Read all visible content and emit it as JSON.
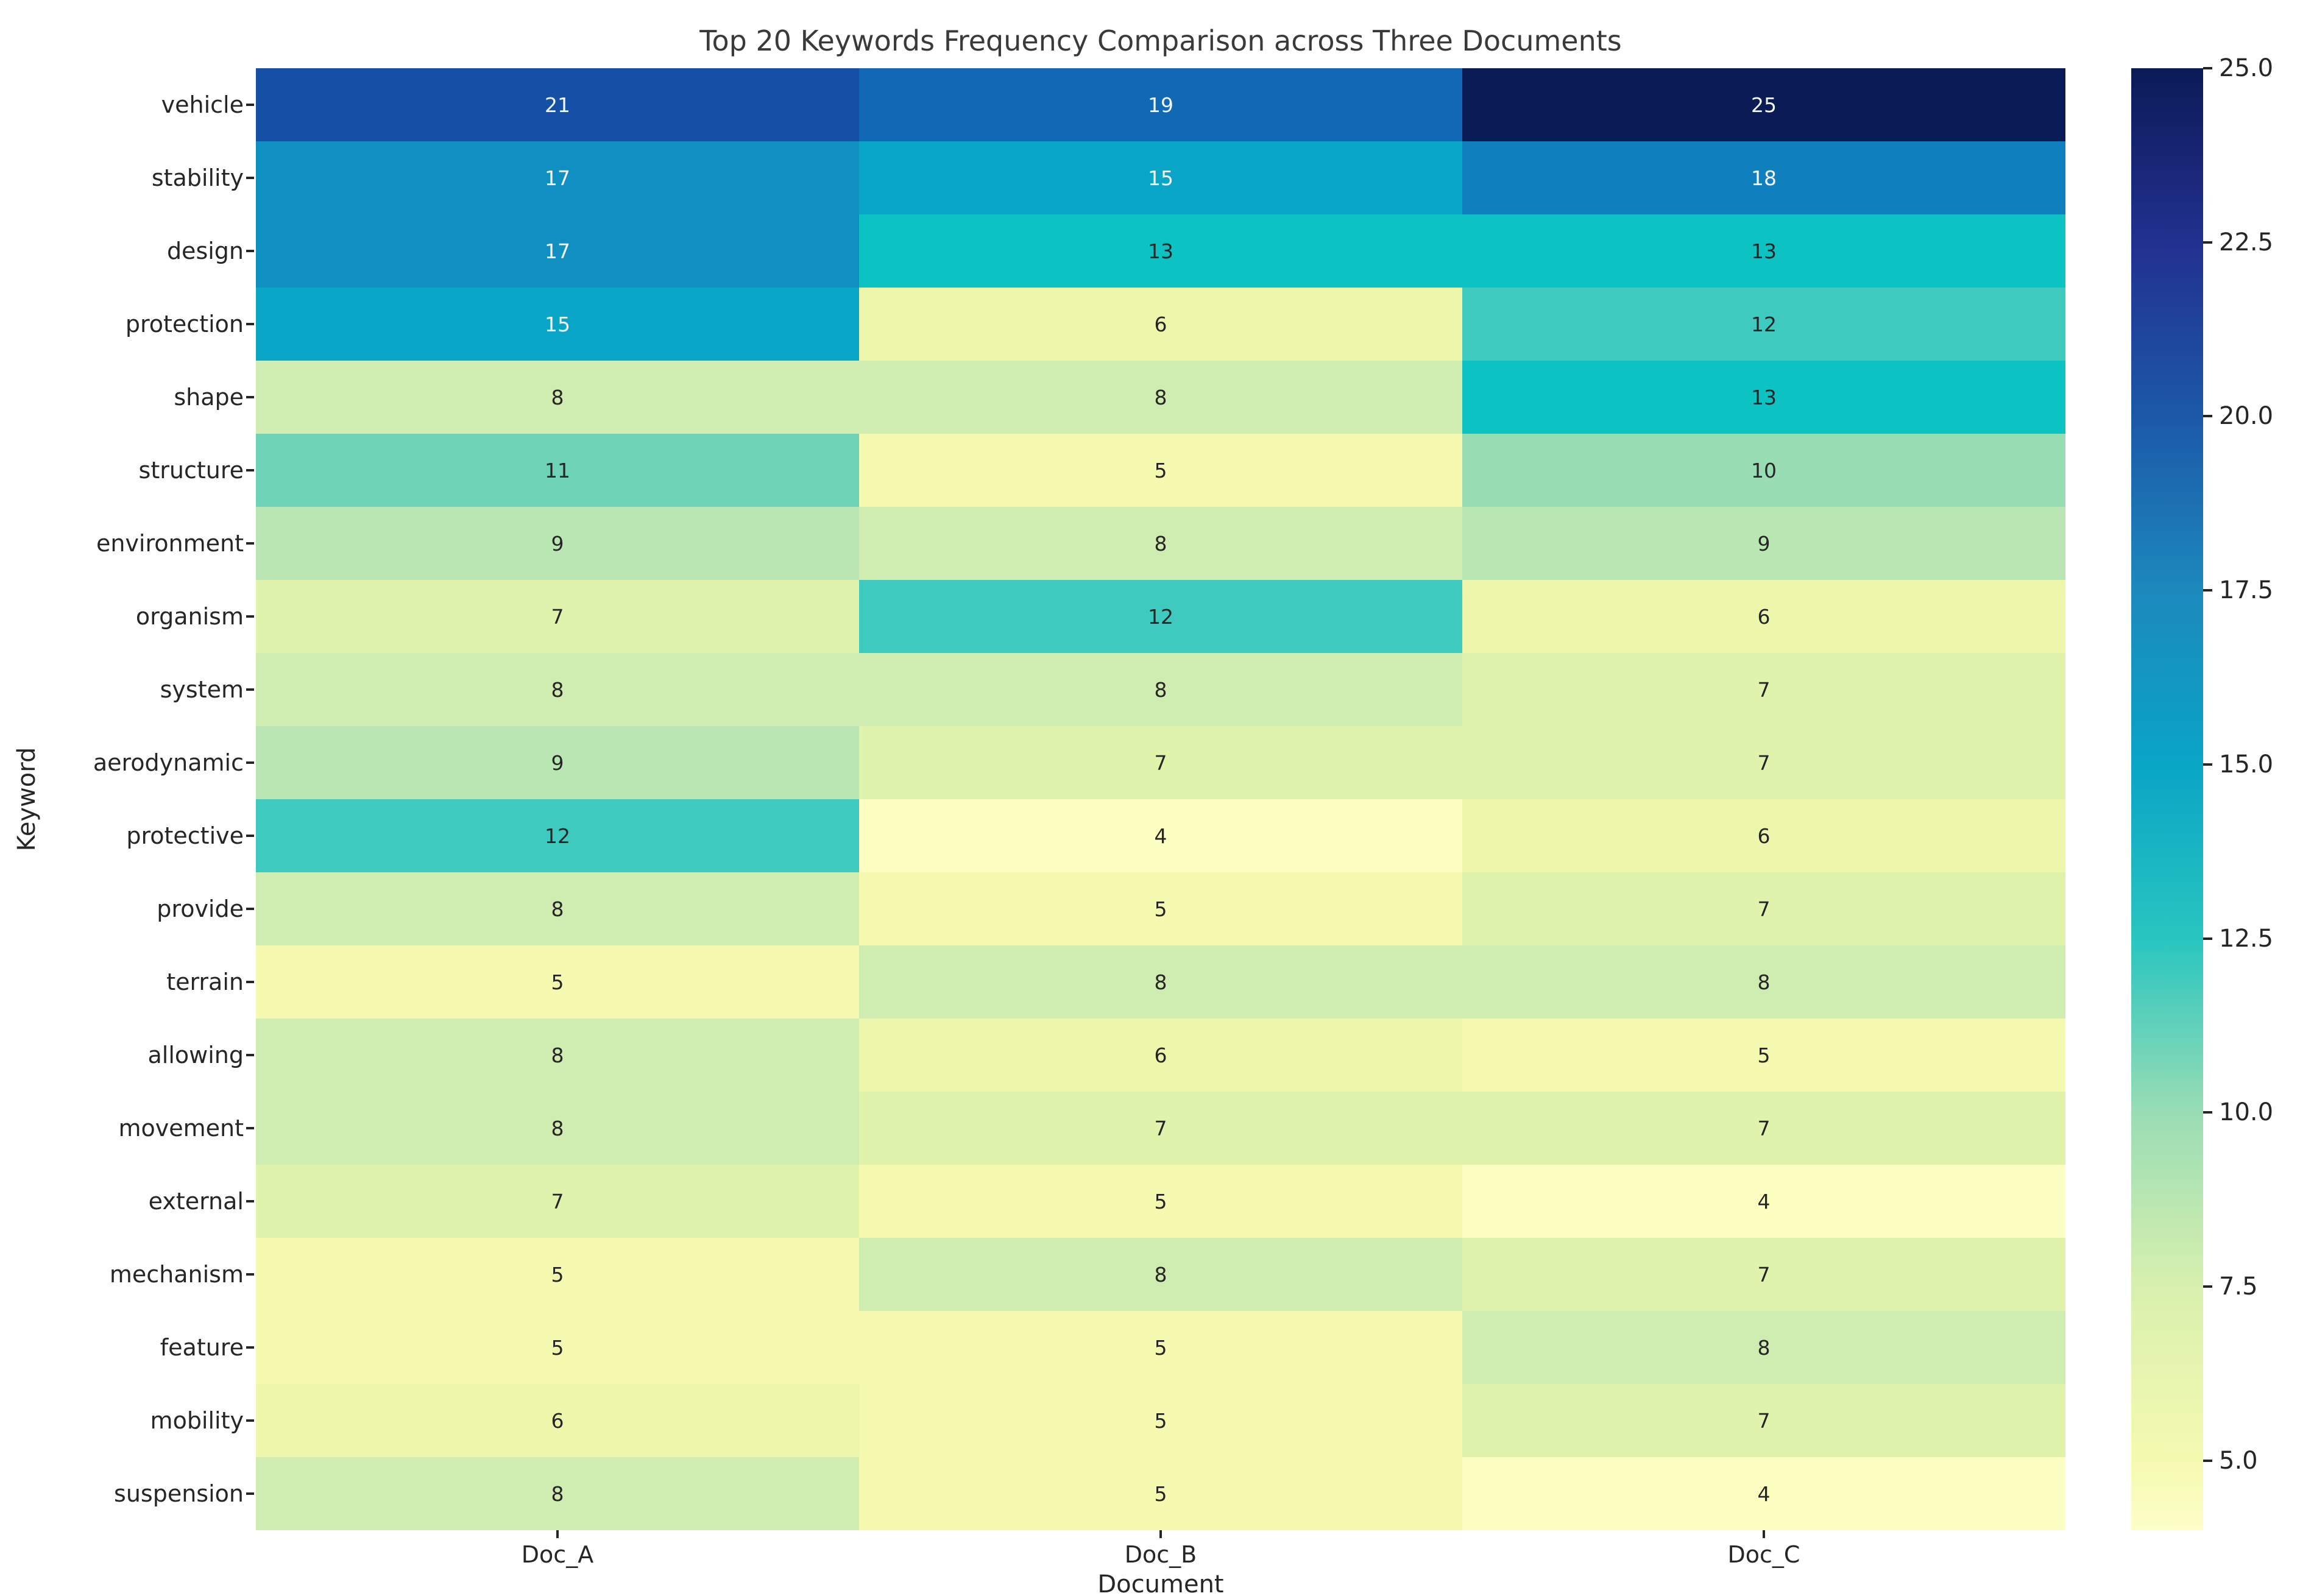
{
  "figure": {
    "title": "Top 20 Keywords Frequency Comparison across Three Documents",
    "xlabel": "Document",
    "ylabel": "Keyword"
  },
  "chart_data": {
    "type": "heatmap",
    "title": "Top 20 Keywords Frequency Comparison across Three Documents",
    "xlabel": "Document",
    "ylabel": "Keyword",
    "legend_position": "right-colorbar",
    "grid": false,
    "columns": [
      "Doc_A",
      "Doc_B",
      "Doc_C"
    ],
    "rows": [
      "vehicle",
      "stability",
      "design",
      "protection",
      "shape",
      "structure",
      "environment",
      "organism",
      "system",
      "aerodynamic",
      "protective",
      "provide",
      "terrain",
      "allowing",
      "movement",
      "external",
      "mechanism",
      "feature",
      "mobility",
      "suspension"
    ],
    "values": [
      [
        21,
        19,
        25
      ],
      [
        17,
        15,
        18
      ],
      [
        17,
        13,
        13
      ],
      [
        15,
        6,
        12
      ],
      [
        8,
        8,
        13
      ],
      [
        11,
        5,
        10
      ],
      [
        9,
        8,
        9
      ],
      [
        7,
        12,
        6
      ],
      [
        8,
        8,
        7
      ],
      [
        9,
        7,
        7
      ],
      [
        12,
        4,
        6
      ],
      [
        8,
        5,
        7
      ],
      [
        5,
        8,
        8
      ],
      [
        8,
        6,
        5
      ],
      [
        8,
        7,
        7
      ],
      [
        7,
        5,
        4
      ],
      [
        5,
        8,
        7
      ],
      [
        5,
        5,
        8
      ],
      [
        6,
        5,
        7
      ],
      [
        8,
        5,
        4
      ]
    ],
    "vmin": 4,
    "vmax": 25,
    "colormap": "YlGnBu",
    "annotated": true,
    "annotation_dark_color": "#262626",
    "annotation_light_color": "#f2f7fb",
    "white_text_min": 15,
    "value_colors": {
      "4": "#fdfec2",
      "5": "#f5fab0",
      "6": "#ecf7ab",
      "7": "#e0f3ad",
      "8": "#cfedb0",
      "9": "#b9e6b3",
      "10": "#99ddb4",
      "11": "#6ed2b7",
      "12": "#3ecabf",
      "13": "#0cc2c2",
      "15": "#09a5c6",
      "17": "#1090c2",
      "18": "#0f80bd",
      "19": "#1169b3",
      "21": "#164fa6",
      "25": "#0b1b56"
    },
    "colorbar_ticks": [
      "25.0",
      "22.5",
      "20.0",
      "17.5",
      "15.0",
      "12.5",
      "10.0",
      "7.5",
      "5.0"
    ],
    "colorbar_gradient": [
      {
        "v": 25.0,
        "color": "#0b1b56"
      },
      {
        "v": 22.5,
        "color": "#223090"
      },
      {
        "v": 20.0,
        "color": "#1c58a8"
      },
      {
        "v": 17.5,
        "color": "#1c89bd"
      },
      {
        "v": 15.0,
        "color": "#09a5c6"
      },
      {
        "v": 12.5,
        "color": "#28c5c0"
      },
      {
        "v": 10.0,
        "color": "#99ddb4"
      },
      {
        "v": 7.5,
        "color": "#d8f0ae"
      },
      {
        "v": 5.0,
        "color": "#f5fab0"
      },
      {
        "v": 4.0,
        "color": "#fdfec9"
      }
    ]
  }
}
